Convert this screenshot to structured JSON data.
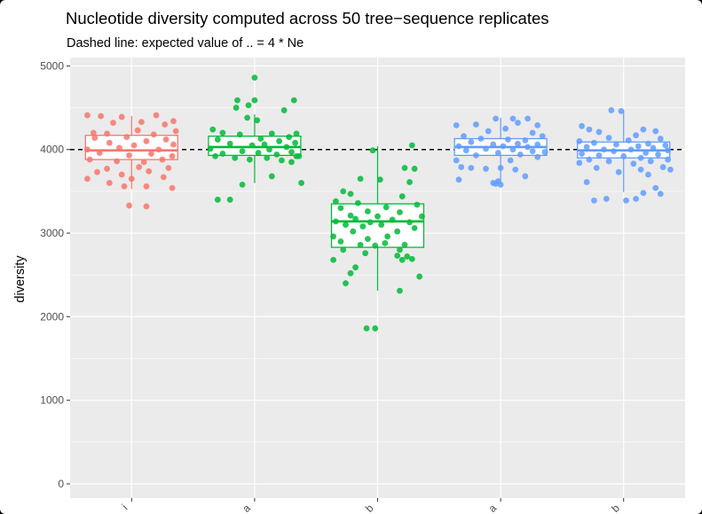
{
  "chart_data": {
    "type": "box",
    "title": "Nucleotide diversity computed across 50 tree−sequence replicates",
    "subtitle": "Dashed line: expected value of .. = 4 * Ne",
    "ylabel": "diversity",
    "xlabel": "",
    "ylim": [
      -170,
      5100
    ],
    "yticks": [
      0,
      1000,
      2000,
      3000,
      4000,
      5000
    ],
    "reference_line": 4000,
    "grid": true,
    "legend": "none",
    "categories": [
      "i",
      "a",
      "b",
      "a",
      "b"
    ],
    "colors": [
      "#F8766D",
      "#00BA38",
      "#00BA38",
      "#619CFF",
      "#619CFF"
    ],
    "boxes": [
      {
        "min": 3530,
        "q1": 3880,
        "median": 3990,
        "q3": 4170,
        "max": 4400
      },
      {
        "min": 3600,
        "q1": 3930,
        "median": 4030,
        "q3": 4160,
        "max": 4420
      },
      {
        "min": 2310,
        "q1": 2830,
        "median": 3140,
        "q3": 3350,
        "max": 4040
      },
      {
        "min": 3590,
        "q1": 3930,
        "median": 4030,
        "q3": 4130,
        "max": 4380
      },
      {
        "min": 3490,
        "q1": 3900,
        "median": 3990,
        "q3": 4090,
        "max": 4470
      }
    ],
    "points": [
      [
        [
          -0.36,
          4410
        ],
        [
          -0.25,
          4400
        ],
        [
          -0.08,
          4390
        ],
        [
          0.2,
          4410
        ],
        [
          0.34,
          4340
        ],
        [
          0.08,
          4330
        ],
        [
          -0.15,
          4320
        ],
        [
          0.27,
          4300
        ],
        [
          0.36,
          4220
        ],
        [
          -0.31,
          4200
        ],
        [
          0.05,
          4230
        ],
        [
          -0.2,
          4190
        ],
        [
          0.18,
          4180
        ],
        [
          -0.04,
          4150
        ],
        [
          0.28,
          4120
        ],
        [
          -0.3,
          4140
        ],
        [
          0.12,
          4100
        ],
        [
          -0.18,
          4080
        ],
        [
          0.34,
          4060
        ],
        [
          -0.36,
          4000
        ],
        [
          0.02,
          4050
        ],
        [
          -0.1,
          4020
        ],
        [
          0.22,
          4000
        ],
        [
          -0.26,
          3960
        ],
        [
          0.16,
          3950
        ],
        [
          0.33,
          3920
        ],
        [
          -0.02,
          3930
        ],
        [
          -0.34,
          3880
        ],
        [
          0.25,
          3880
        ],
        [
          -0.12,
          3860
        ],
        [
          0.1,
          3850
        ],
        [
          -0.2,
          3770
        ],
        [
          0.06,
          3790
        ],
        [
          0.3,
          3780
        ],
        [
          -0.28,
          3730
        ],
        [
          0.14,
          3740
        ],
        [
          -0.08,
          3700
        ],
        [
          -0.36,
          3650
        ],
        [
          0.0,
          3650
        ],
        [
          0.26,
          3670
        ],
        [
          -0.18,
          3600
        ],
        [
          0.12,
          3560
        ],
        [
          0.33,
          3540
        ],
        [
          -0.06,
          3560
        ],
        [
          -0.02,
          3330
        ],
        [
          0.12,
          3320
        ]
      ],
      [
        [
          0.0,
          4860
        ],
        [
          -0.14,
          4590
        ],
        [
          0.32,
          4590
        ],
        [
          0.0,
          4590
        ],
        [
          -0.15,
          4500
        ],
        [
          -0.05,
          4530
        ],
        [
          0.24,
          4470
        ],
        [
          -0.06,
          4380
        ],
        [
          0.02,
          4350
        ],
        [
          -0.34,
          4240
        ],
        [
          -0.26,
          4200
        ],
        [
          0.14,
          4190
        ],
        [
          0.34,
          4190
        ],
        [
          -0.12,
          4180
        ],
        [
          0.28,
          4150
        ],
        [
          0.05,
          4130
        ],
        [
          -0.3,
          4120
        ],
        [
          0.2,
          4100
        ],
        [
          0.33,
          4080
        ],
        [
          -0.2,
          4070
        ],
        [
          0.08,
          4060
        ],
        [
          -0.02,
          4050
        ],
        [
          0.26,
          4030
        ],
        [
          -0.36,
          4010
        ],
        [
          0.12,
          4000
        ],
        [
          -0.1,
          3980
        ],
        [
          0.3,
          3970
        ],
        [
          -0.26,
          3950
        ],
        [
          0.03,
          3960
        ],
        [
          0.18,
          3940
        ],
        [
          0.36,
          3920
        ],
        [
          -0.32,
          3920
        ],
        [
          -0.16,
          3900
        ],
        [
          0.1,
          3900
        ],
        [
          -0.04,
          3880
        ],
        [
          0.22,
          3870
        ],
        [
          0.3,
          3850
        ],
        [
          0.14,
          3680
        ],
        [
          0.38,
          3600
        ],
        [
          -0.1,
          3580
        ],
        [
          -0.3,
          3400
        ],
        [
          -0.2,
          3400
        ],
        [
          0.34,
          3920
        ]
      ],
      [
        [
          -0.04,
          3990
        ],
        [
          0.28,
          4050
        ],
        [
          0.22,
          3780
        ],
        [
          0.3,
          3770
        ],
        [
          -0.14,
          3650
        ],
        [
          0.02,
          3640
        ],
        [
          0.26,
          3610
        ],
        [
          -0.28,
          3500
        ],
        [
          -0.22,
          3470
        ],
        [
          0.2,
          3440
        ],
        [
          -0.34,
          3380
        ],
        [
          -0.16,
          3360
        ],
        [
          0.32,
          3340
        ],
        [
          0.07,
          3310
        ],
        [
          -0.3,
          3300
        ],
        [
          -0.08,
          3260
        ],
        [
          0.18,
          3250
        ],
        [
          -0.22,
          3210
        ],
        [
          0.0,
          3200
        ],
        [
          0.36,
          3200
        ],
        [
          -0.18,
          3170
        ],
        [
          0.12,
          3160
        ],
        [
          -0.34,
          3140
        ],
        [
          -0.06,
          3130
        ],
        [
          0.26,
          3130
        ],
        [
          -0.26,
          3100
        ],
        [
          0.03,
          3100
        ],
        [
          -0.12,
          3080
        ],
        [
          0.3,
          3060
        ],
        [
          -0.2,
          3020
        ],
        [
          0.16,
          3020
        ],
        [
          -0.36,
          2960
        ],
        [
          0.08,
          2960
        ],
        [
          -0.08,
          2930
        ],
        [
          -0.3,
          2900
        ],
        [
          0.06,
          2880
        ],
        [
          -0.14,
          2860
        ],
        [
          0.22,
          2860
        ],
        [
          -0.02,
          2850
        ],
        [
          -0.28,
          2800
        ],
        [
          0.18,
          2800
        ],
        [
          -0.1,
          2760
        ],
        [
          0.16,
          2730
        ],
        [
          0.24,
          2720
        ],
        [
          -0.36,
          2680
        ],
        [
          0.2,
          2680
        ],
        [
          0.28,
          2690
        ],
        [
          -0.18,
          2590
        ],
        [
          -0.22,
          2520
        ],
        [
          0.34,
          2480
        ],
        [
          -0.26,
          2400
        ],
        [
          0.18,
          2310
        ],
        [
          -0.09,
          1860
        ],
        [
          -0.02,
          1860
        ]
      ],
      [
        [
          0.3,
          4290
        ],
        [
          -0.36,
          4290
        ],
        [
          -0.04,
          4370
        ],
        [
          0.1,
          4370
        ],
        [
          0.22,
          4370
        ],
        [
          0.14,
          4320
        ],
        [
          -0.2,
          4300
        ],
        [
          0.04,
          4250
        ],
        [
          -0.1,
          4220
        ],
        [
          0.26,
          4200
        ],
        [
          -0.3,
          4160
        ],
        [
          0.34,
          4160
        ],
        [
          -0.16,
          4130
        ],
        [
          0.06,
          4120
        ],
        [
          0.2,
          4110
        ],
        [
          -0.24,
          4090
        ],
        [
          0.14,
          4070
        ],
        [
          -0.06,
          4060
        ],
        [
          0.3,
          4060
        ],
        [
          -0.34,
          4040
        ],
        [
          0.02,
          4040
        ],
        [
          0.22,
          4030
        ],
        [
          -0.12,
          4010
        ],
        [
          0.1,
          4000
        ],
        [
          -0.28,
          3990
        ],
        [
          0.26,
          3980
        ],
        [
          0.36,
          3970
        ],
        [
          -0.02,
          3960
        ],
        [
          0.16,
          3940
        ],
        [
          -0.2,
          3930
        ],
        [
          0.3,
          3910
        ],
        [
          -0.36,
          3870
        ],
        [
          0.08,
          3870
        ],
        [
          -0.24,
          3780
        ],
        [
          -0.32,
          3790
        ],
        [
          0.0,
          3780
        ],
        [
          -0.12,
          3770
        ],
        [
          0.12,
          3760
        ],
        [
          0.2,
          3680
        ],
        [
          -0.34,
          3640
        ],
        [
          -0.02,
          3620
        ],
        [
          -0.06,
          3600
        ],
        [
          0.0,
          3580
        ],
        [
          -0.04,
          3590
        ]
      ],
      [
        [
          -0.1,
          4470
        ],
        [
          -0.02,
          4460
        ],
        [
          -0.34,
          4280
        ],
        [
          -0.28,
          4240
        ],
        [
          0.16,
          4240
        ],
        [
          0.26,
          4220
        ],
        [
          -0.2,
          4210
        ],
        [
          0.1,
          4170
        ],
        [
          -0.12,
          4140
        ],
        [
          0.3,
          4130
        ],
        [
          -0.36,
          4100
        ],
        [
          0.04,
          4110
        ],
        [
          -0.24,
          4080
        ],
        [
          0.2,
          4070
        ],
        [
          0.34,
          4050
        ],
        [
          -0.06,
          4060
        ],
        [
          0.12,
          4040
        ],
        [
          -0.3,
          4030
        ],
        [
          0.24,
          4020
        ],
        [
          -0.16,
          4000
        ],
        [
          0.06,
          4000
        ],
        [
          0.36,
          3990
        ],
        [
          -0.08,
          3980
        ],
        [
          0.18,
          3960
        ],
        [
          -0.34,
          3950
        ],
        [
          0.28,
          3940
        ],
        [
          -0.2,
          3930
        ],
        [
          0.0,
          3920
        ],
        [
          0.14,
          3900
        ],
        [
          0.36,
          3880
        ],
        [
          -0.28,
          3880
        ],
        [
          -0.12,
          3860
        ],
        [
          0.22,
          3860
        ],
        [
          -0.36,
          3840
        ],
        [
          0.08,
          3830
        ],
        [
          0.32,
          3790
        ],
        [
          -0.22,
          3780
        ],
        [
          0.14,
          3760
        ],
        [
          0.38,
          3760
        ],
        [
          -0.04,
          3730
        ],
        [
          0.2,
          3700
        ],
        [
          -0.3,
          3610
        ],
        [
          0.26,
          3540
        ],
        [
          0.16,
          3480
        ],
        [
          0.3,
          3470
        ],
        [
          -0.14,
          3410
        ],
        [
          0.1,
          3410
        ],
        [
          -0.24,
          3390
        ],
        [
          0.02,
          3390
        ]
      ]
    ]
  }
}
